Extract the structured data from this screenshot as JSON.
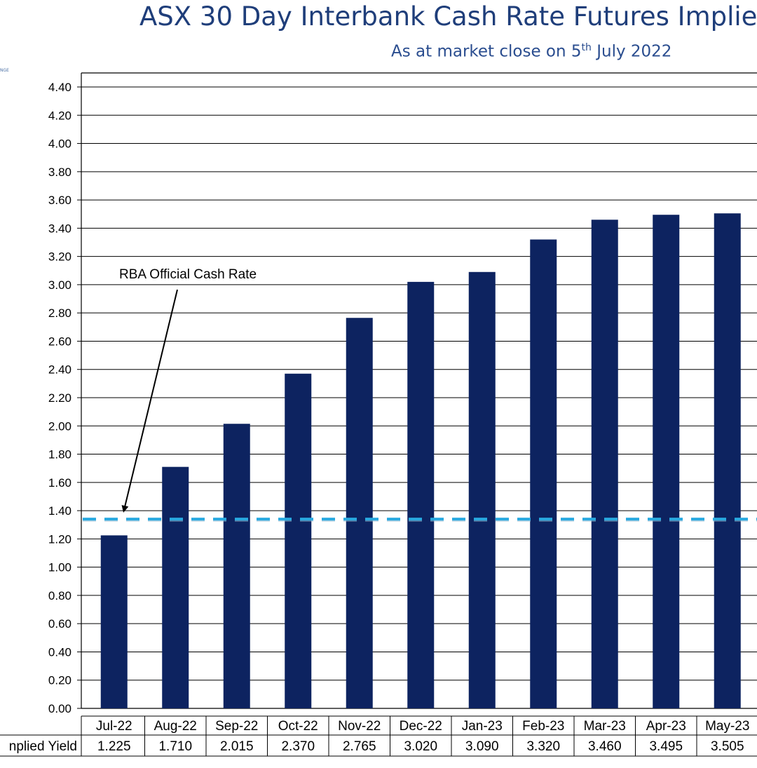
{
  "header": {
    "title": "ASX 30 Day Interbank Cash Rate Futures Implie",
    "subtitle_prefix": "As at market close on 5",
    "subtitle_sup": "th",
    "subtitle_suffix": " July 2022",
    "logo_fragment": "NGE"
  },
  "chart_data": {
    "type": "bar",
    "title": "ASX 30 Day Interbank Cash Rate Futures Implie",
    "subtitle": "As at market close on 5th July 2022",
    "categories": [
      "Jul-22",
      "Aug-22",
      "Sep-22",
      "Oct-22",
      "Nov-22",
      "Dec-22",
      "Jan-23",
      "Feb-23",
      "Mar-23",
      "Apr-23",
      "May-23"
    ],
    "series": [
      {
        "name": "Implied Yield",
        "values": [
          1.225,
          1.71,
          2.015,
          2.37,
          2.765,
          3.02,
          3.09,
          3.32,
          3.46,
          3.495,
          3.505
        ]
      }
    ],
    "table_row_label": "nplied Yield",
    "table_values": [
      "1.225",
      "1.710",
      "2.015",
      "2.370",
      "2.765",
      "3.020",
      "3.090",
      "3.320",
      "3.460",
      "3.495",
      "3.505"
    ],
    "y_ticks": [
      "0.00",
      "0.20",
      "0.40",
      "0.60",
      "0.80",
      "1.00",
      "1.20",
      "1.40",
      "1.60",
      "1.80",
      "2.00",
      "2.20",
      "2.40",
      "2.60",
      "2.80",
      "3.00",
      "3.20",
      "3.40",
      "3.60",
      "3.80",
      "4.00",
      "4.20",
      "4.40"
    ],
    "ylim": [
      0,
      4.4
    ],
    "grid": true,
    "reference_line": {
      "label": "RBA Official Cash Rate",
      "value": 1.34,
      "color": "#29a9e0",
      "style": "dashed"
    },
    "bar_color": "#0d2360"
  }
}
